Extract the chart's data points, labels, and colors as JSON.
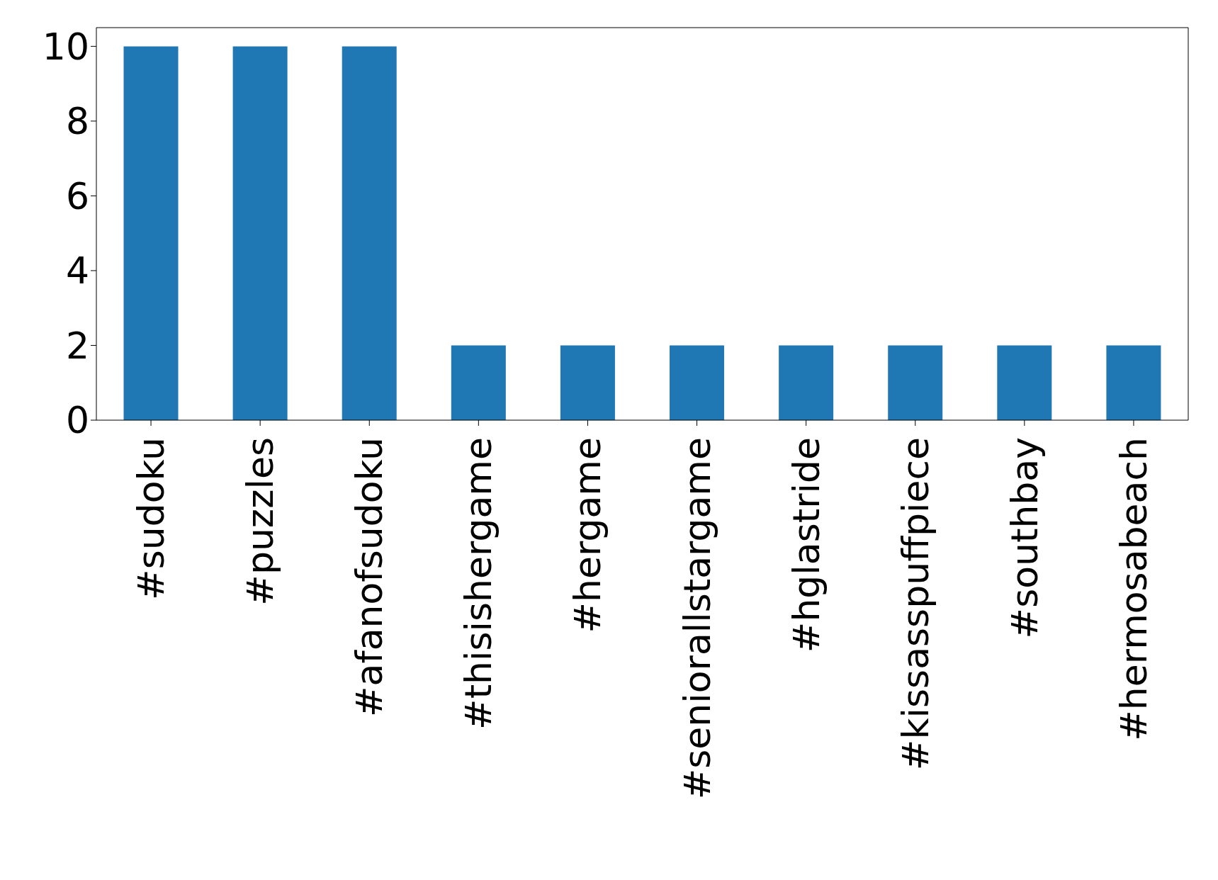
{
  "chart_data": {
    "type": "bar",
    "categories": [
      "#sudoku",
      "#puzzles",
      "#afanofsudoku",
      "#thisishergame",
      "#hergame",
      "#seniorallstargame",
      "#hglastride",
      "#kissasspuffpiece",
      "#southbay",
      "#hermosabeach"
    ],
    "values": [
      10,
      10,
      10,
      2,
      2,
      2,
      2,
      2,
      2,
      2
    ],
    "color": "#1f77b4",
    "ylim": [
      0,
      10.5
    ],
    "yticks": [
      0,
      2,
      4,
      6,
      8,
      10
    ],
    "grid": false,
    "legend": false
  }
}
